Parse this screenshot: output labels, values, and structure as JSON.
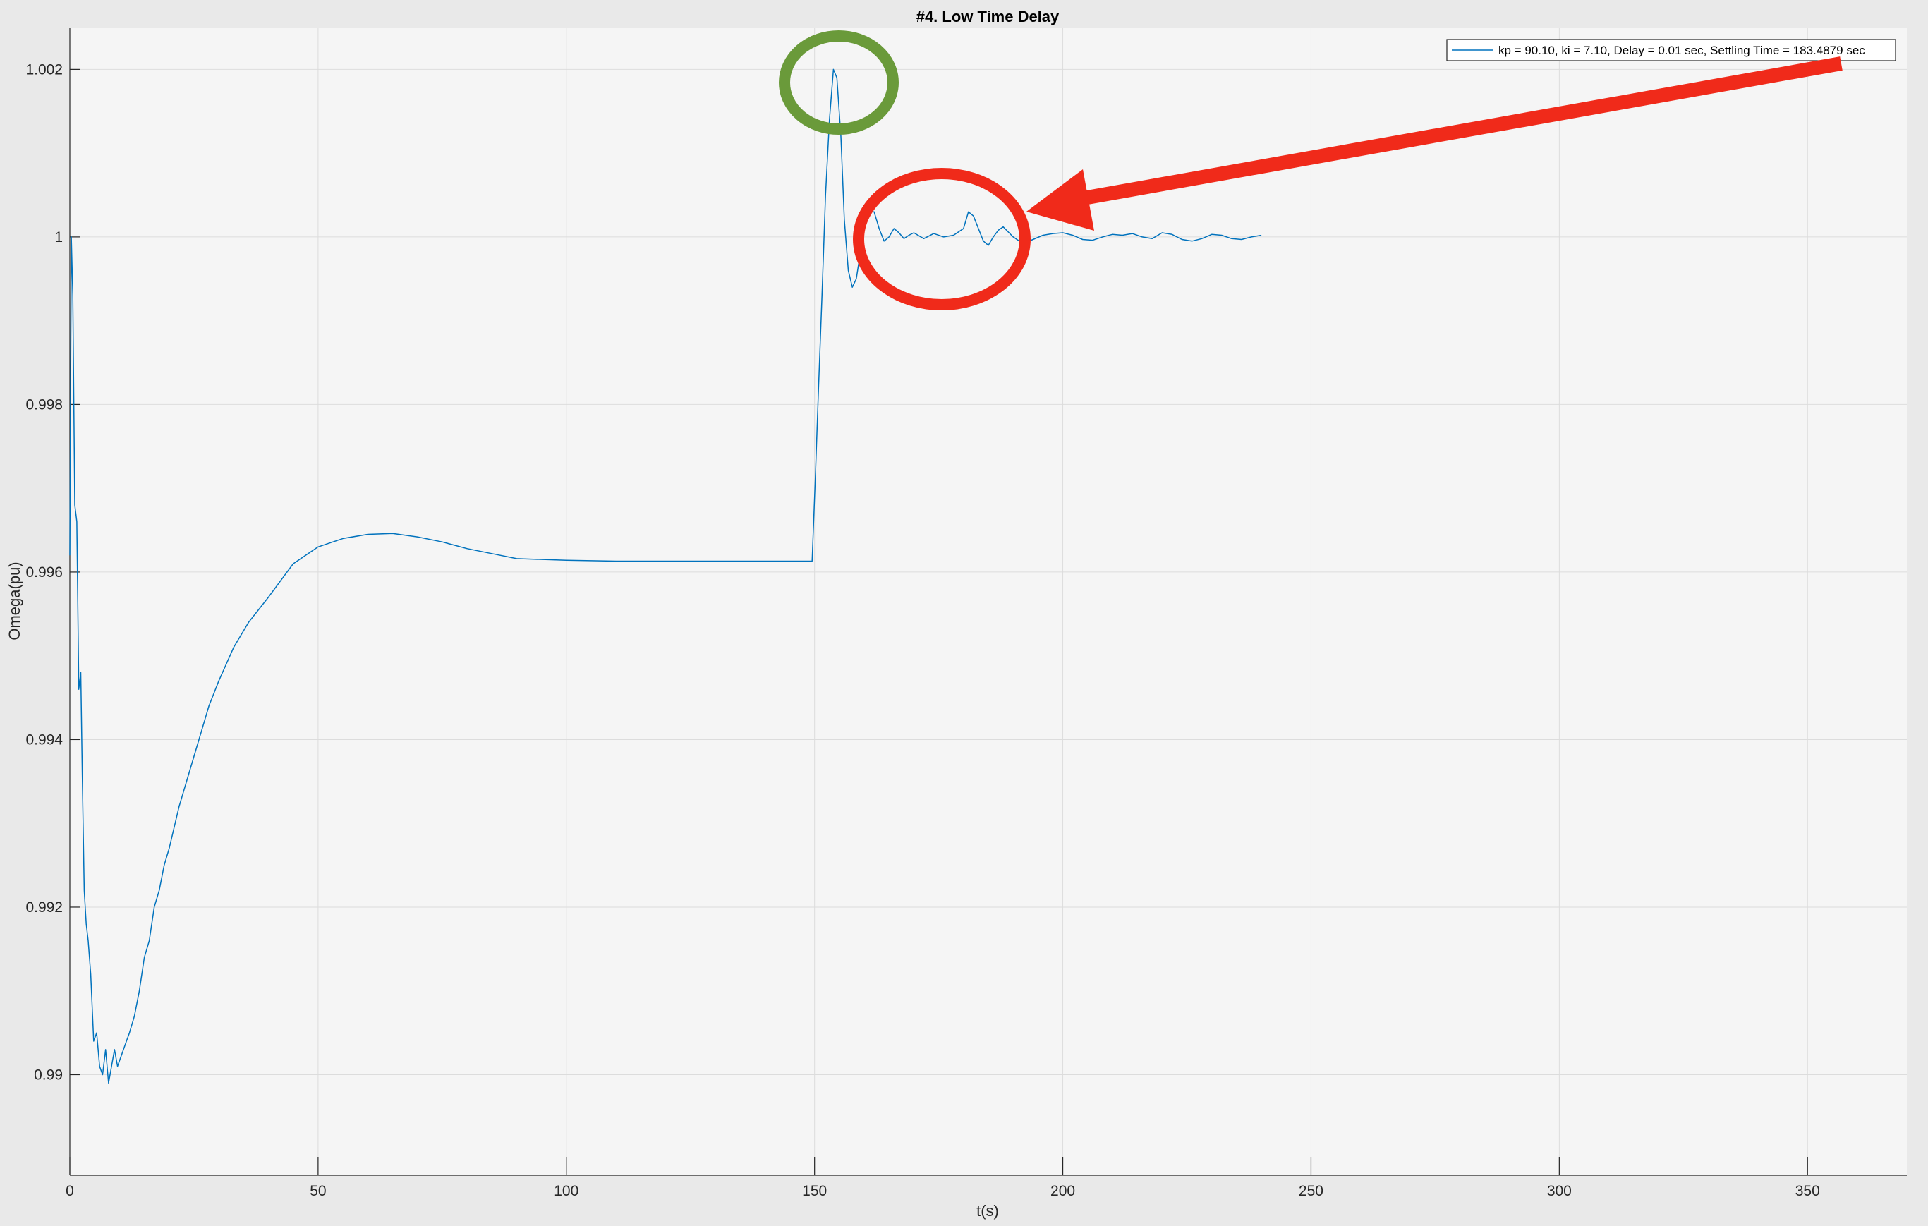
{
  "chart_data": {
    "type": "line",
    "title": "#4. Low Time Delay",
    "xlabel": "t(s)",
    "ylabel": "Omega(pu)",
    "xlim": [
      0,
      370
    ],
    "ylim": [
      0.9888,
      1.0025
    ],
    "xticks": [
      0,
      50,
      100,
      150,
      200,
      250,
      300,
      350
    ],
    "yticks": [
      0.99,
      0.992,
      0.994,
      0.996,
      0.998,
      1,
      1.002
    ],
    "xtick_labels": [
      "0",
      "50",
      "100",
      "150",
      "200",
      "250",
      "300",
      "350"
    ],
    "ytick_labels": [
      "0.99",
      "0.992",
      "0.994",
      "0.996",
      "0.998",
      "1",
      "1.002"
    ],
    "grid": true,
    "legend_position": "top-right",
    "colors": {
      "line": "#0072BD",
      "highlight_green": "#6a9a3a",
      "highlight_red": "#f02a1a"
    },
    "series": [
      {
        "name": "kp = 90.10, ki = 7.10, Delay = 0.01 sec, Settling Time = 183.4879 sec",
        "x": [
          0,
          0.3,
          0.6,
          1.0,
          1.4,
          1.8,
          2.2,
          2.5,
          2.9,
          3.3,
          3.7,
          4.2,
          4.8,
          5.4,
          6.0,
          6.6,
          7.2,
          7.8,
          8.4,
          9.0,
          9.6,
          10.2,
          10.8,
          11.4,
          12.0,
          13,
          14,
          15,
          16,
          17,
          18,
          19,
          20,
          22,
          24,
          26,
          28,
          30,
          33,
          36,
          40,
          45,
          50,
          55,
          60,
          65,
          70,
          75,
          80,
          85,
          90,
          100,
          110,
          120,
          130,
          140,
          149.5,
          150.2,
          150.8,
          151.5,
          152.2,
          153.0,
          153.8,
          154.5,
          155.3,
          156.0,
          156.8,
          157.6,
          158.4,
          159.2,
          160.0,
          161.0,
          162.0,
          163.0,
          164.0,
          165.0,
          166.0,
          167.0,
          168.0,
          169.0,
          170.0,
          172,
          174,
          176,
          178,
          180,
          181,
          182,
          183,
          184,
          185,
          186,
          187,
          188,
          190,
          192,
          194,
          196,
          198,
          200,
          202,
          204,
          206,
          208,
          210,
          212,
          214,
          216,
          218,
          220,
          222,
          224,
          226,
          228,
          230,
          232,
          234,
          236,
          238,
          240
        ],
        "y": [
          0.9962,
          1.0,
          0.9993,
          0.9968,
          0.9966,
          0.9946,
          0.9948,
          0.9936,
          0.9922,
          0.9918,
          0.9916,
          0.9912,
          0.9904,
          0.9905,
          0.9901,
          0.99,
          0.9903,
          0.9899,
          0.9901,
          0.9903,
          0.9901,
          0.9902,
          0.9903,
          0.9904,
          0.9905,
          0.9907,
          0.991,
          0.9914,
          0.9916,
          0.992,
          0.9922,
          0.9925,
          0.9927,
          0.9932,
          0.9936,
          0.994,
          0.9944,
          0.9947,
          0.9951,
          0.9954,
          0.9957,
          0.9961,
          0.9963,
          0.9964,
          0.99645,
          0.99646,
          0.99642,
          0.99636,
          0.99628,
          0.99622,
          0.99616,
          0.99614,
          0.99613,
          0.99613,
          0.99613,
          0.99613,
          0.99613,
          0.9972,
          0.9982,
          0.9993,
          1.0005,
          1.0014,
          1.002,
          1.0019,
          1.0012,
          1.0002,
          0.9996,
          0.9994,
          0.9995,
          0.9998,
          1.0001,
          1.0003,
          1.0003,
          1.0001,
          0.99995,
          1.0,
          1.0001,
          1.00005,
          0.99998,
          1.00002,
          1.00005,
          0.99998,
          1.00004,
          1.0,
          1.00002,
          1.0001,
          1.0003,
          1.00025,
          1.0001,
          0.99995,
          0.9999,
          1.0,
          1.00008,
          1.00012,
          1.0,
          0.99992,
          0.99997,
          1.00002,
          1.00004,
          1.00005,
          1.00002,
          0.99997,
          0.99996,
          1.0,
          1.00003,
          1.00002,
          1.00004,
          1.0,
          0.99998,
          1.00005,
          1.00003,
          0.99997,
          0.99995,
          0.99998,
          1.00003,
          1.00002,
          0.99998,
          0.99997,
          1.0,
          1.00002
        ]
      }
    ]
  }
}
